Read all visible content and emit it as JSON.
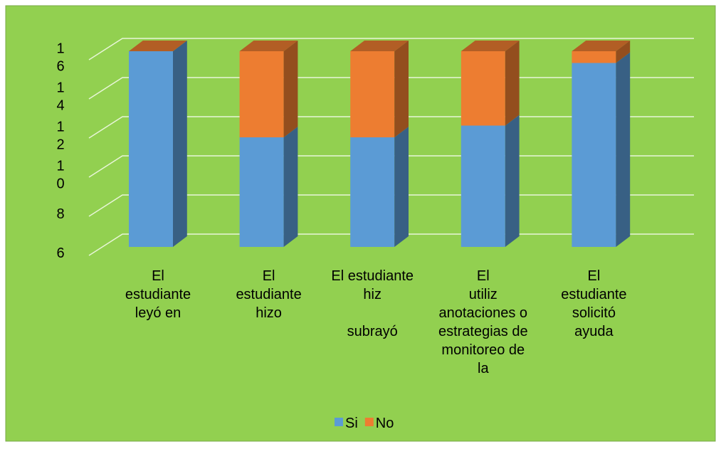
{
  "chart_data": {
    "type": "bar3d_stacked",
    "categories": [
      [
        "El",
        "estudiante",
        "leyó en"
      ],
      [
        "El",
        "estudiante",
        "hizo"
      ],
      [
        "El estudiante",
        "hiz",
        "",
        "subrayó"
      ],
      [
        "El",
        "utiliz",
        "anotaciones o",
        "estrategias de",
        "monitoreo de",
        "la"
      ],
      [
        "El",
        "estudiante",
        "solicitó",
        "ayuda"
      ]
    ],
    "series": [
      {
        "name": "Si",
        "color": "#5b9bd5",
        "values": [
          16,
          11.6,
          11.6,
          12.2,
          15.4
        ]
      },
      {
        "name": "No",
        "color": "#ed7d31",
        "values": [
          0,
          4.4,
          4.4,
          3.8,
          0.6
        ]
      }
    ],
    "ylim": [
      6,
      16
    ],
    "yticks": [
      6,
      8,
      10,
      12,
      14,
      16
    ],
    "grid": true,
    "legend": "bottom"
  }
}
